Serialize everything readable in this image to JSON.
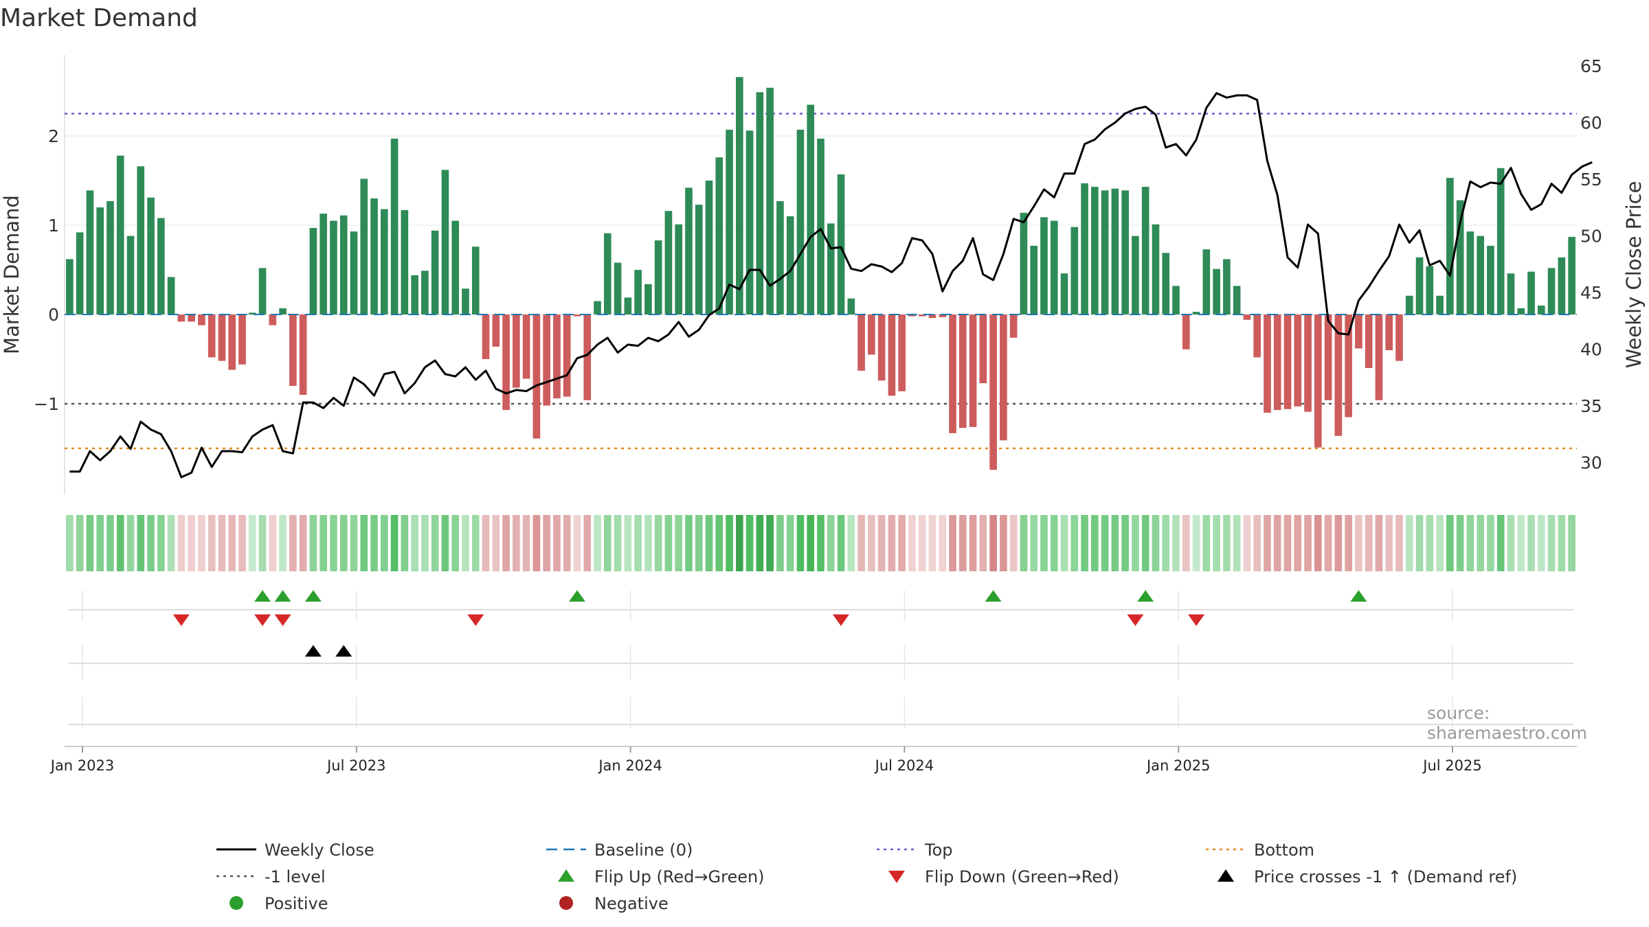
{
  "chart_data": {
    "type": "bar+line",
    "title": "Market Demand",
    "source": "source: sharemaestro.com",
    "left_axis": {
      "label": "Market Demand",
      "ticks": [
        "2",
        "1",
        "0",
        "−1"
      ],
      "tick_values": [
        2,
        1,
        0,
        -1
      ],
      "range": [
        -2.0,
        2.9
      ]
    },
    "right_axis": {
      "label": "Weekly Close Price",
      "ticks": [
        "65",
        "60",
        "55",
        "50",
        "45",
        "40",
        "35",
        "30"
      ],
      "tick_values": [
        65,
        60,
        55,
        50,
        45,
        40,
        35,
        30
      ],
      "range": [
        26.5,
        66.5
      ]
    },
    "x_ticks": [
      "Jan 2023",
      "Jul 2023",
      "Jan 2024",
      "Jul 2024",
      "Jan 2025",
      "Jul 2025"
    ],
    "x_tick_weeks": [
      1,
      27,
      53,
      79,
      105,
      131
    ],
    "reference_lines": {
      "top": 2.25,
      "minus_one": -1.0,
      "bottom": -1.5
    },
    "demand": [
      0.62,
      0.92,
      1.39,
      1.2,
      1.27,
      1.78,
      0.88,
      1.66,
      1.31,
      1.08,
      0.42,
      -0.08,
      -0.08,
      -0.12,
      -0.48,
      -0.52,
      -0.62,
      -0.56,
      0.02,
      0.52,
      -0.12,
      0.07,
      -0.8,
      -0.9,
      0.97,
      1.13,
      1.05,
      1.11,
      0.93,
      1.52,
      1.3,
      1.18,
      1.97,
      1.17,
      0.44,
      0.49,
      0.94,
      1.62,
      1.05,
      0.29,
      0.76,
      -0.5,
      -0.36,
      -1.07,
      -0.82,
      -0.72,
      -1.39,
      -1.02,
      -0.94,
      -0.92,
      -0.02,
      -0.96,
      0.15,
      0.91,
      0.58,
      0.19,
      0.5,
      0.34,
      0.83,
      1.16,
      1.01,
      1.42,
      1.23,
      1.5,
      1.76,
      2.07,
      2.66,
      2.06,
      2.49,
      2.54,
      1.27,
      1.1,
      2.07,
      2.35,
      1.97,
      1.02,
      1.57,
      0.18,
      -0.63,
      -0.45,
      -0.74,
      -0.91,
      -0.86,
      -0.02,
      -0.02,
      -0.04,
      -0.03,
      -1.33,
      -1.27,
      -1.26,
      -0.77,
      -1.74,
      -1.41,
      -0.26,
      1.14,
      0.77,
      1.09,
      1.05,
      0.46,
      0.98,
      1.47,
      1.43,
      1.39,
      1.41,
      1.39,
      0.88,
      1.43,
      1.01,
      0.69,
      0.32,
      -0.39,
      0.03,
      0.73,
      0.51,
      0.62,
      0.32,
      -0.06,
      -0.48,
      -1.1,
      -1.07,
      -1.06,
      -1.03,
      -1.09,
      -1.49,
      -0.96,
      -1.36,
      -1.15,
      -0.38,
      -0.6,
      -0.96,
      -0.4,
      -0.52,
      0.21,
      0.64,
      0.54,
      0.21,
      1.53,
      1.28,
      0.93,
      0.88,
      0.77,
      1.64,
      0.46,
      0.07,
      0.48,
      0.1,
      0.52,
      0.64,
      0.87
    ],
    "weekly_close": [
      29.2,
      29.2,
      31.0,
      30.2,
      31.0,
      32.3,
      31.2,
      33.6,
      32.9,
      32.5,
      31.0,
      28.7,
      29.1,
      31.3,
      29.6,
      31.0,
      31.0,
      30.9,
      32.3,
      32.9,
      33.3,
      31.0,
      30.8,
      35.3,
      35.3,
      34.8,
      35.7,
      35.0,
      37.5,
      36.9,
      35.9,
      37.8,
      38.0,
      36.1,
      37.0,
      38.4,
      39.0,
      37.8,
      37.6,
      38.4,
      37.3,
      38.1,
      36.5,
      36.1,
      36.4,
      36.3,
      36.8,
      37.1,
      37.4,
      37.7,
      39.2,
      39.5,
      40.4,
      41.0,
      39.7,
      40.4,
      40.3,
      41.0,
      40.7,
      41.3,
      42.4,
      41.1,
      41.7,
      43.0,
      43.6,
      45.7,
      45.3,
      47.0,
      47.0,
      45.6,
      46.2,
      46.9,
      48.4,
      49.9,
      50.6,
      48.9,
      49.0,
      47.1,
      46.9,
      47.5,
      47.3,
      46.8,
      47.6,
      49.8,
      49.6,
      48.4,
      45.1,
      46.9,
      47.8,
      49.8,
      46.6,
      46.1,
      48.4,
      51.5,
      51.2,
      52.6,
      54.1,
      53.4,
      55.5,
      55.5,
      58.1,
      58.5,
      59.4,
      60.0,
      60.8,
      61.2,
      61.4,
      60.7,
      57.8,
      58.1,
      57.1,
      58.5,
      61.3,
      62.6,
      62.2,
      62.4,
      62.4,
      62.0,
      56.6,
      53.6,
      48.1,
      47.2,
      51.0,
      50.2,
      42.5,
      41.4,
      41.3,
      44.3,
      45.5,
      46.9,
      48.2,
      51.0,
      49.4,
      50.5,
      47.4,
      47.8,
      46.5,
      51.2,
      54.8,
      54.3,
      54.7,
      54.6,
      56.0,
      53.7,
      52.3,
      52.8,
      54.6,
      53.8,
      55.4,
      56.1,
      56.5
    ],
    "flip_up_weeks": [
      19,
      21,
      24,
      50,
      91,
      106,
      127
    ],
    "flip_down_weeks": [
      11,
      19,
      21,
      40,
      76,
      105,
      111
    ],
    "price_crosses_weeks": [
      24,
      27
    ],
    "legend": [
      {
        "label": "Weekly Close",
        "symbol": "solid-line",
        "color": "#000000"
      },
      {
        "label": "Baseline (0)",
        "symbol": "dashed-line",
        "color": "#1f77b4"
      },
      {
        "label": "Top",
        "symbol": "dotted-line",
        "color": "#6a5acd"
      },
      {
        "label": "Bottom",
        "symbol": "dotted-line",
        "color": "#e08a1e"
      },
      {
        "label": "-1 level",
        "symbol": "dotted-line",
        "color": "#555555"
      },
      {
        "label": "Flip Up (Red→Green)",
        "symbol": "triangle-up",
        "color": "#2ca02c"
      },
      {
        "label": "Flip Down (Green→Red)",
        "symbol": "triangle-down",
        "color": "#d62728"
      },
      {
        "label": "Price crosses -1 ↑ (Demand ref)",
        "symbol": "triangle-up",
        "color": "#000000"
      },
      {
        "label": "Positive",
        "symbol": "circle",
        "color": "#2ca02c"
      },
      {
        "label": "Negative",
        "symbol": "circle",
        "color": "#b22222"
      }
    ],
    "colors": {
      "positive_bar": "#2e8b57",
      "negative_bar": "#cd5c5c",
      "price_line": "#000000"
    }
  }
}
